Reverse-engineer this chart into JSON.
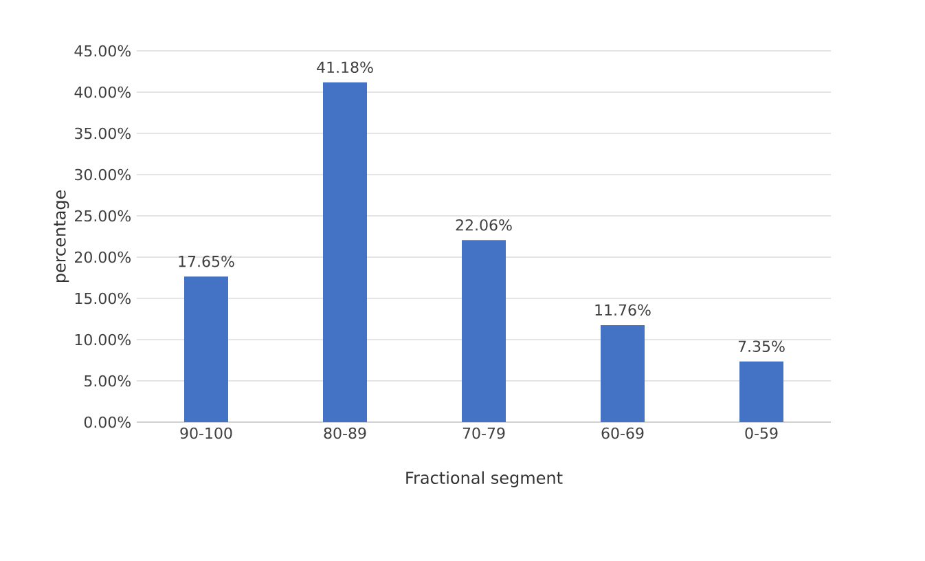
{
  "chart_data": {
    "type": "bar",
    "xlabel": "Fractional segment",
    "ylabel": "percentage",
    "categories": [
      "90-100",
      "80-89",
      "70-79",
      "60-69",
      "0-59"
    ],
    "values": [
      17.65,
      41.18,
      22.06,
      11.76,
      7.35
    ],
    "value_labels": [
      "17.65%",
      "41.18%",
      "22.06%",
      "11.76%",
      "7.35%"
    ],
    "color": "#4472c4",
    "ylim": [
      0,
      45
    ],
    "yticks": [
      {
        "value": 0,
        "label": "0.00%"
      },
      {
        "value": 5,
        "label": "5.00%"
      },
      {
        "value": 10,
        "label": "10.00%"
      },
      {
        "value": 15,
        "label": "15.00%"
      },
      {
        "value": 20,
        "label": "20.00%"
      },
      {
        "value": 25,
        "label": "25.00%"
      },
      {
        "value": 30,
        "label": "30.00%"
      },
      {
        "value": 35,
        "label": "35.00%"
      },
      {
        "value": 40,
        "label": "40.00%"
      },
      {
        "value": 45,
        "label": "45.00%"
      }
    ],
    "grid": "y"
  }
}
